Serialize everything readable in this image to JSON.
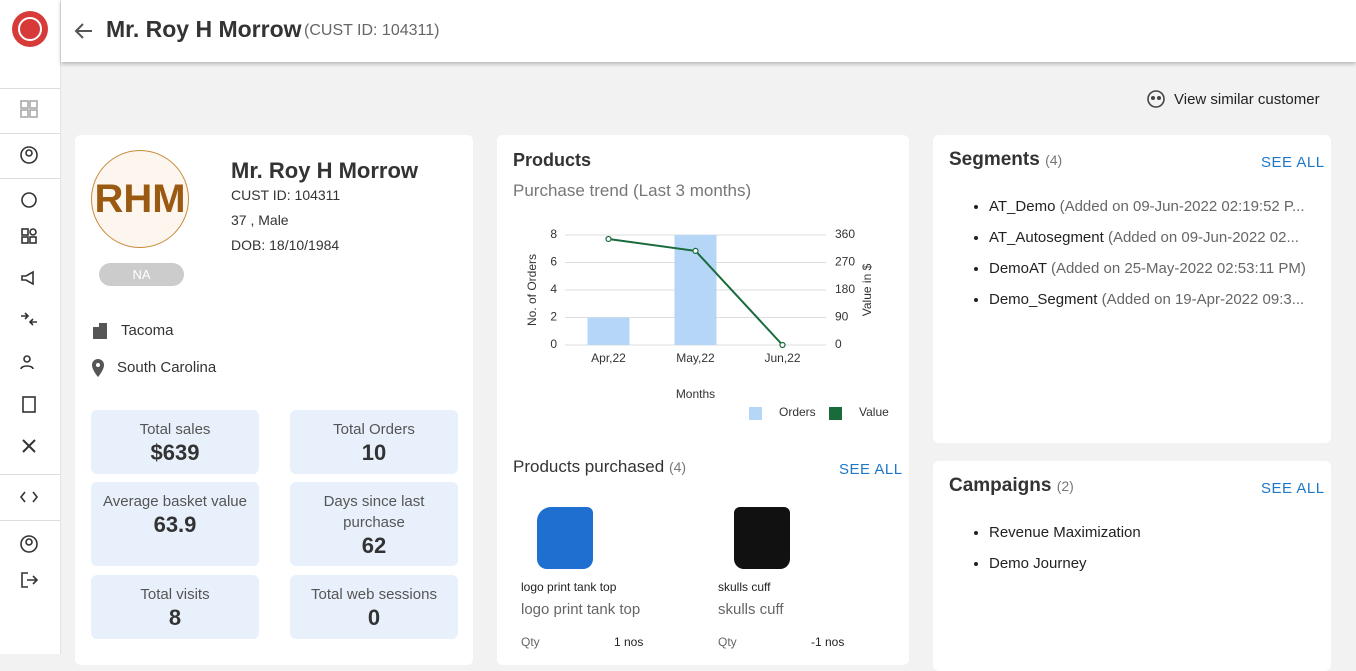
{
  "header": {
    "name": "Mr. Roy H Morrow",
    "cust_id": "(CUST ID: 104311)"
  },
  "view_similar": "View similar customer",
  "profile": {
    "initials": "RHM",
    "badge": "NA",
    "name": "Mr. Roy H Morrow",
    "cust_id": "CUST ID: 104311",
    "age_gender": "37 , Male",
    "dob": "DOB: 18/10/1984",
    "city": "Tacoma",
    "state": "South Carolina"
  },
  "stats": [
    {
      "label": "Total sales",
      "value": "$639"
    },
    {
      "label": "Total Orders",
      "value": 10
    },
    {
      "label": "Average basket value",
      "value": 63.9
    },
    {
      "label": "Days since last purchase",
      "value": 62
    },
    {
      "label": "Total visits",
      "value": 8
    },
    {
      "label": "Total web sessions",
      "value": 0
    }
  ],
  "products": {
    "title": "Products",
    "subtitle": "Purchase trend (Last 3 months)",
    "chart": {
      "type": "bar_line",
      "categories": [
        "Apr,22",
        "May,22",
        "Jun,22"
      ],
      "x_label": "Months",
      "y_label": "No. of Orders",
      "y2_label": "Value in $",
      "ylim": [
        0,
        8
      ],
      "yticks": [
        0,
        2,
        4,
        6,
        8
      ],
      "y2lim": [
        0,
        360
      ],
      "y2ticks": [
        0,
        90,
        180,
        270,
        360
      ],
      "grid": true,
      "legend": "bottom-right",
      "series": [
        {
          "name": "Orders",
          "color": "#b5d6f7",
          "values": [
            2,
            8,
            0
          ]
        },
        {
          "name": "Value",
          "color": "#1a6b3c",
          "values": [
            347,
            308,
            0
          ],
          "axis": "y2"
        }
      ]
    }
  },
  "products_purchased": {
    "title": "Products purchased",
    "count": "(4)",
    "see_all": "SEE ALL",
    "items": [
      {
        "name": "logo print tank top",
        "subtitle": "logo print tank top",
        "qty_label": "Qty",
        "qty": "1 nos"
      },
      {
        "name": "skulls cuff",
        "subtitle": "skulls cuff",
        "qty_label": "Qty",
        "qty": "-1 nos"
      }
    ]
  },
  "segments": {
    "title": "Segments",
    "count": "(4)",
    "see_all": "SEE ALL",
    "items": [
      {
        "name": "AT_Demo",
        "detail": "(Added on 09-Jun-2022 02:19:52 P..."
      },
      {
        "name": "AT_Autosegment",
        "detail": "(Added on 09-Jun-2022 02..."
      },
      {
        "name": "DemoAT",
        "detail": "(Added on 25-May-2022 02:53:11 PM)"
      },
      {
        "name": "Demo_Segment",
        "detail": "(Added on 19-Apr-2022 09:3..."
      }
    ]
  },
  "campaigns": {
    "title": "Campaigns",
    "count": "(2)",
    "see_all": "SEE ALL",
    "items": [
      "Revenue Maximization",
      "Demo Journey"
    ]
  }
}
